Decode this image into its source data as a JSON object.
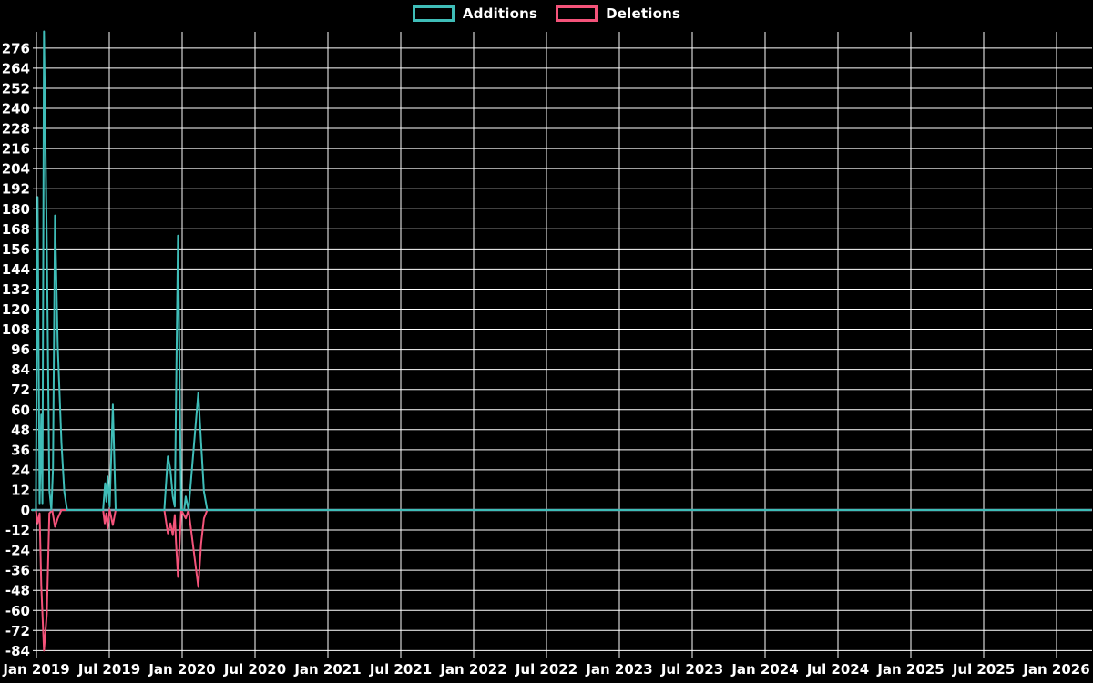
{
  "chart_data": {
    "type": "line",
    "title": "",
    "legend_position": "top-center",
    "background_color": "#000000",
    "text_color": "#ffffff",
    "grid": {
      "show": true,
      "color": "#ffffff"
    },
    "zero_line_color": "#7FA8B8",
    "x_axis": {
      "tick_labels": [
        "Jan 2019",
        "Jul 2019",
        "Jan 2020",
        "Jul 2020",
        "Jan 2021",
        "Jul 2021",
        "Jan 2022",
        "Jul 2022",
        "Jan 2023",
        "Jul 2023",
        "Jan 2024",
        "Jul 2024",
        "Jan 2025",
        "Jul 2025",
        "Jan 2026"
      ]
    },
    "y_axis": {
      "ticks": [
        276,
        264,
        252,
        240,
        228,
        216,
        204,
        192,
        180,
        168,
        156,
        144,
        132,
        120,
        108,
        96,
        84,
        72,
        60,
        48,
        36,
        24,
        12,
        0,
        -12,
        -24,
        -36,
        -48,
        -60,
        -72,
        -84
      ],
      "min": -86,
      "max": 289,
      "step": 12
    },
    "series": [
      {
        "name": "Additions",
        "color": "#3FBDB8",
        "points": [
          [
            "2018-12-20",
            0
          ],
          [
            "2018-12-30",
            0
          ],
          [
            "2019-01-04",
            187
          ],
          [
            "2019-01-09",
            4
          ],
          [
            "2019-01-13",
            57
          ],
          [
            "2019-01-16",
            4
          ],
          [
            "2019-01-20",
            286
          ],
          [
            "2019-01-27",
            159
          ],
          [
            "2019-02-03",
            12
          ],
          [
            "2019-02-08",
            0
          ],
          [
            "2019-02-12",
            25
          ],
          [
            "2019-02-17",
            176
          ],
          [
            "2019-02-24",
            98
          ],
          [
            "2019-03-03",
            40
          ],
          [
            "2019-03-10",
            11
          ],
          [
            "2019-03-17",
            0
          ],
          [
            "2019-06-16",
            0
          ],
          [
            "2019-06-21",
            16
          ],
          [
            "2019-06-24",
            5
          ],
          [
            "2019-06-27",
            20
          ],
          [
            "2019-07-02",
            2
          ],
          [
            "2019-07-10",
            63
          ],
          [
            "2019-07-17",
            0
          ],
          [
            "2019-11-17",
            0
          ],
          [
            "2019-11-26",
            32
          ],
          [
            "2019-12-02",
            24
          ],
          [
            "2019-12-08",
            8
          ],
          [
            "2019-12-13",
            2
          ],
          [
            "2019-12-21",
            164
          ],
          [
            "2019-12-29",
            0
          ],
          [
            "2020-01-06",
            0
          ],
          [
            "2020-01-10",
            8
          ],
          [
            "2020-01-17",
            0
          ],
          [
            "2020-02-11",
            70
          ],
          [
            "2020-02-18",
            40
          ],
          [
            "2020-02-25",
            11
          ],
          [
            "2020-03-03",
            0
          ],
          [
            "2026-03-25",
            0
          ]
        ]
      },
      {
        "name": "Deletions",
        "color": "#F4537A",
        "points": [
          [
            "2018-12-20",
            0
          ],
          [
            "2018-12-30",
            0
          ],
          [
            "2019-01-04",
            -8
          ],
          [
            "2019-01-09",
            -2
          ],
          [
            "2019-01-13",
            -45
          ],
          [
            "2019-01-20",
            -84
          ],
          [
            "2019-01-27",
            -62
          ],
          [
            "2019-02-03",
            -2
          ],
          [
            "2019-02-10",
            0
          ],
          [
            "2019-02-17",
            -10
          ],
          [
            "2019-02-24",
            -5
          ],
          [
            "2019-03-03",
            0
          ],
          [
            "2019-06-16",
            0
          ],
          [
            "2019-06-20",
            -8
          ],
          [
            "2019-06-24",
            -2
          ],
          [
            "2019-06-27",
            -11
          ],
          [
            "2019-07-02",
            0
          ],
          [
            "2019-07-10",
            -9
          ],
          [
            "2019-07-17",
            0
          ],
          [
            "2019-11-17",
            0
          ],
          [
            "2019-11-26",
            -14
          ],
          [
            "2019-12-02",
            -8
          ],
          [
            "2019-12-08",
            -15
          ],
          [
            "2019-12-13",
            -3
          ],
          [
            "2019-12-16",
            -19
          ],
          [
            "2019-12-21",
            -40
          ],
          [
            "2019-12-29",
            0
          ],
          [
            "2020-01-10",
            -5
          ],
          [
            "2020-01-17",
            0
          ],
          [
            "2020-02-11",
            -46
          ],
          [
            "2020-02-18",
            -20
          ],
          [
            "2020-02-25",
            -5
          ],
          [
            "2020-03-03",
            0
          ],
          [
            "2026-03-25",
            0
          ]
        ]
      }
    ]
  }
}
